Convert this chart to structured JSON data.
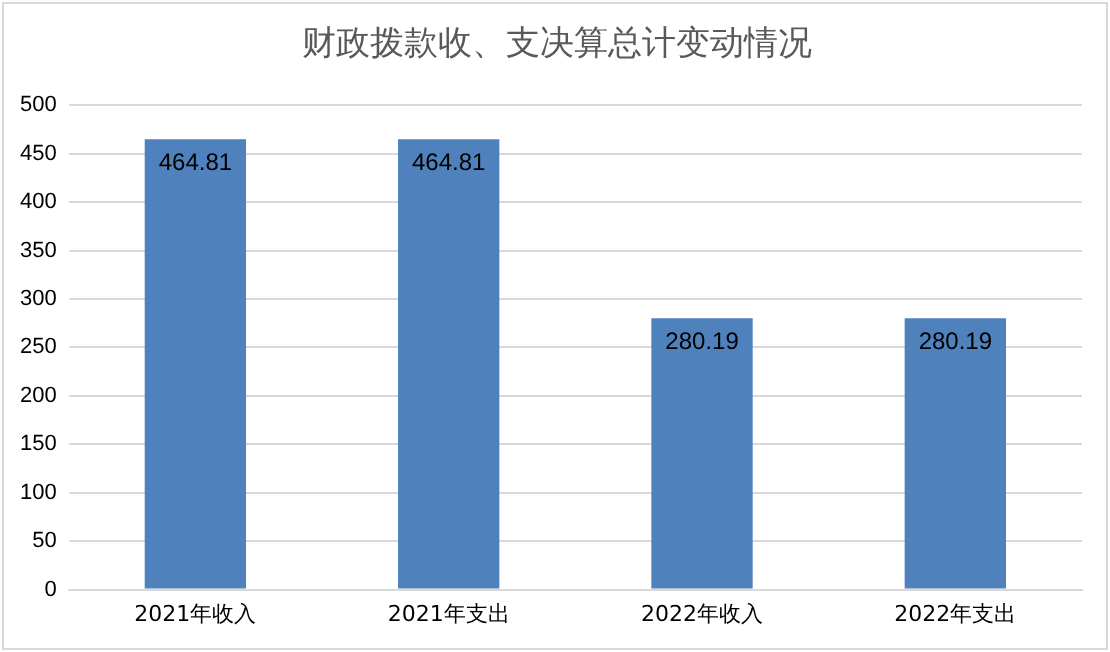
{
  "chart_data": {
    "type": "bar",
    "title": "财政拨款收、支决算总计变动情况",
    "categories": [
      "2021年收入",
      "2021年支出",
      "2022年收入",
      "2022年支出"
    ],
    "values": [
      464.81,
      464.81,
      280.19,
      280.19
    ],
    "color": "#4f81bd",
    "ylim": [
      0,
      500
    ],
    "yticks": [
      0,
      50,
      100,
      150,
      200,
      250,
      300,
      350,
      400,
      450,
      500
    ],
    "grid": "y",
    "data_labels": true
  }
}
